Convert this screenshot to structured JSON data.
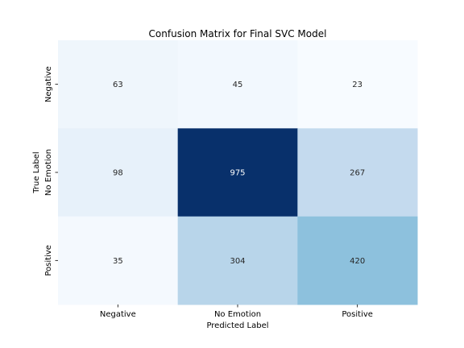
{
  "chart_data": {
    "type": "heatmap",
    "title": "Confusion Matrix for Final SVC Model",
    "xlabel": "Predicted Label",
    "ylabel": "True Label",
    "x_categories": [
      "Negative",
      "No Emotion",
      "Positive"
    ],
    "y_categories": [
      "Negative",
      "No Emotion",
      "Positive"
    ],
    "values": [
      [
        63,
        45,
        23
      ],
      [
        98,
        975,
        267
      ],
      [
        35,
        304,
        420
      ]
    ],
    "colormap": "Blues",
    "colorbar": false,
    "grid": false
  }
}
